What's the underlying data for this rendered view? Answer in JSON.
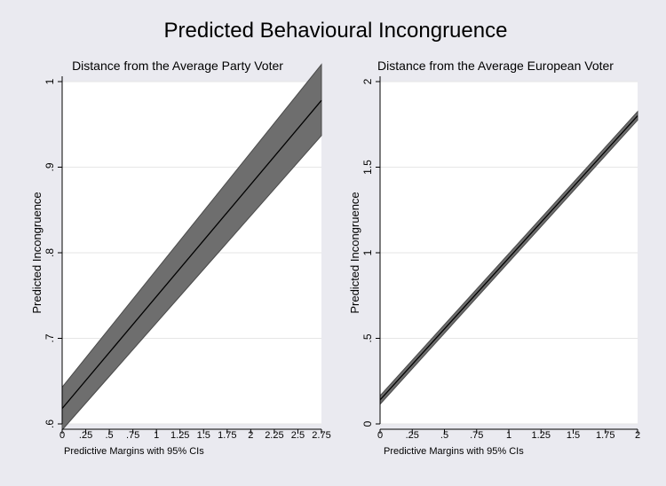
{
  "title": "Predicted Behavioural Incongruence",
  "colors": {
    "outer_bg": "#eaeaf0",
    "plot_bg": "#ffffff",
    "band_fill": "#6e6e6e",
    "band_edge": "#4a4a4a",
    "line": "#000000",
    "grid": "#e6e6e6"
  },
  "chart_data": [
    {
      "type": "line",
      "title": "Distance from the Average Party Voter",
      "xlabel": "Predictive Margins with 95% CIs",
      "ylabel": "Predicted Incongruence",
      "xlim": [
        0,
        2.75
      ],
      "ylim": [
        0.6,
        1.0
      ],
      "grid": true,
      "x_ticks": [
        0,
        0.25,
        0.5,
        0.75,
        1,
        1.25,
        1.5,
        1.75,
        2,
        2.25,
        2.5,
        2.75
      ],
      "x_tick_labels": [
        "0",
        ".25",
        ".5",
        ".75",
        "1",
        "1.25",
        "1.5",
        "1.75",
        "2",
        "2.25",
        "2.5",
        "2.75"
      ],
      "y_ticks": [
        0.6,
        0.7,
        0.8,
        0.9,
        1.0
      ],
      "y_tick_labels": [
        ".6",
        ".7",
        ".8",
        ".9",
        "1"
      ],
      "series": [
        {
          "x": [
            0,
            2.75
          ],
          "y": [
            0.618,
            0.978
          ],
          "ci_lower": [
            0.593,
            0.937
          ],
          "ci_upper": [
            0.643,
            1.02
          ]
        }
      ]
    },
    {
      "type": "line",
      "title": "Distance from the Average European Voter",
      "xlabel": "Predictive Margins with 95% CIs",
      "ylabel": "Predicted Incongruence",
      "xlim": [
        0,
        2
      ],
      "ylim": [
        0,
        2
      ],
      "grid": true,
      "x_ticks": [
        0,
        0.25,
        0.5,
        0.75,
        1,
        1.25,
        1.5,
        1.75,
        2
      ],
      "x_tick_labels": [
        "0",
        ".25",
        ".5",
        ".75",
        "1",
        "1.25",
        "1.5",
        "1.75",
        "2"
      ],
      "y_ticks": [
        0,
        0.5,
        1,
        1.5,
        2
      ],
      "y_tick_labels": [
        "0",
        ".5",
        "1",
        "1.5",
        "2"
      ],
      "series": [
        {
          "x": [
            0,
            2
          ],
          "y": [
            0.14,
            1.8
          ],
          "ci_lower": [
            0.115,
            1.775
          ],
          "ci_upper": [
            0.165,
            1.825
          ]
        }
      ]
    }
  ]
}
